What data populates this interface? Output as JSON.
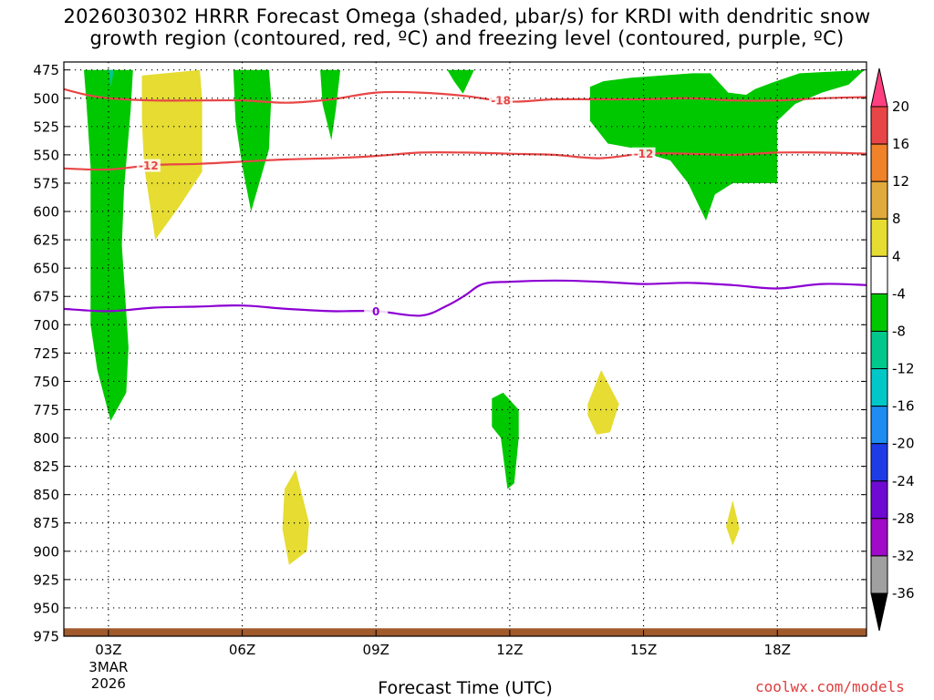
{
  "chart_data": {
    "type": "heatmap",
    "title_line1": "2026030302 HRRR Forecast Omega (shaded, μbar/s) for KRDI with dendritic snow",
    "title_line2": "growth region (contoured, red, ºC) and freezing level (contoured, purple, ºC)",
    "xlabel": "Forecast Time (UTC)",
    "credit": "coolwx.com/models",
    "x_axis": {
      "range_hours": [
        2,
        20
      ],
      "ticks": [
        {
          "hour": 3,
          "label": "03Z",
          "sub1": "3MAR",
          "sub2": "2026"
        },
        {
          "hour": 6,
          "label": "06Z"
        },
        {
          "hour": 9,
          "label": "09Z"
        },
        {
          "hour": 12,
          "label": "12Z"
        },
        {
          "hour": 15,
          "label": "15Z"
        },
        {
          "hour": 18,
          "label": "18Z"
        }
      ]
    },
    "y_axis": {
      "range_mb": [
        475,
        975
      ],
      "ticks": [
        475,
        500,
        525,
        550,
        575,
        600,
        625,
        650,
        675,
        700,
        725,
        750,
        775,
        800,
        825,
        850,
        875,
        900,
        925,
        950,
        975
      ]
    },
    "colorbar": {
      "levels": [
        20,
        16,
        12,
        8,
        4,
        -4,
        -8,
        -12,
        -16,
        -20,
        -24,
        -28,
        -32,
        -36
      ],
      "colors": [
        "#ff3f7f",
        "#e84646",
        "#f0822a",
        "#e0aa3c",
        "#e6dc32",
        "#ffffff",
        "#00c800",
        "#00c88c",
        "#00c8c8",
        "#1e8cf0",
        "#1e3ce6",
        "#6e0ad2",
        "#a00ac8",
        "#a0a0a0",
        "#000000"
      ]
    },
    "contours": [
      {
        "name": "dgz-minus18",
        "label": "-18",
        "color": "#e84646",
        "points": [
          [
            2.0,
            492
          ],
          [
            2.5,
            497
          ],
          [
            3,
            500
          ],
          [
            4,
            502
          ],
          [
            5,
            502
          ],
          [
            6,
            502
          ],
          [
            7,
            504
          ],
          [
            8,
            501
          ],
          [
            9,
            495
          ],
          [
            10,
            495
          ],
          [
            11,
            498
          ],
          [
            12,
            503
          ],
          [
            13,
            501
          ],
          [
            14,
            501
          ],
          [
            15,
            501
          ],
          [
            16,
            500
          ],
          [
            17,
            502
          ],
          [
            18,
            502
          ],
          [
            19,
            500
          ],
          [
            20,
            499
          ]
        ]
      },
      {
        "name": "dgz-minus12",
        "label": "-12",
        "color": "#e84646",
        "points": [
          [
            2.0,
            562
          ],
          [
            3,
            563
          ],
          [
            4,
            559
          ],
          [
            5,
            558
          ],
          [
            6,
            556
          ],
          [
            7,
            554
          ],
          [
            8,
            553
          ],
          [
            9,
            551
          ],
          [
            10,
            548
          ],
          [
            11,
            548
          ],
          [
            12,
            549
          ],
          [
            13,
            550
          ],
          [
            14,
            553
          ],
          [
            15,
            549
          ],
          [
            16,
            549
          ],
          [
            17,
            550
          ],
          [
            18,
            548
          ],
          [
            19,
            548
          ],
          [
            20,
            549
          ]
        ]
      },
      {
        "name": "freezing-level",
        "label": "0",
        "color": "#8c00d2",
        "points": [
          [
            2.0,
            686
          ],
          [
            3,
            688
          ],
          [
            4,
            685
          ],
          [
            5,
            684
          ],
          [
            6,
            683
          ],
          [
            7,
            686
          ],
          [
            8,
            688
          ],
          [
            9,
            688
          ],
          [
            10,
            692
          ],
          [
            10.6,
            683
          ],
          [
            11,
            674
          ],
          [
            11.4,
            664
          ],
          [
            12,
            662
          ],
          [
            13,
            661
          ],
          [
            14,
            662
          ],
          [
            15,
            664
          ],
          [
            16,
            663
          ],
          [
            17,
            665
          ],
          [
            18,
            668
          ],
          [
            19,
            664
          ],
          [
            20,
            665
          ]
        ]
      }
    ],
    "omega_regions": [
      {
        "name": "upward-motion-0to3z",
        "value": -6,
        "points": [
          [
            2.45,
            475
          ],
          [
            3.55,
            475
          ],
          [
            3.5,
            510
          ],
          [
            3.35,
            580
          ],
          [
            3.3,
            630
          ],
          [
            3.45,
            720
          ],
          [
            3.4,
            760
          ],
          [
            3.05,
            785
          ],
          [
            2.75,
            740
          ],
          [
            2.6,
            700
          ],
          [
            2.6,
            620
          ],
          [
            2.6,
            560
          ],
          [
            2.5,
            500
          ]
        ]
      },
      {
        "name": "upward-motion-core-3z",
        "value": -9,
        "points": [
          [
            3.0,
            475
          ],
          [
            3.12,
            475
          ],
          [
            3.06,
            490
          ]
        ]
      },
      {
        "name": "downward-motion-4z",
        "value": 5,
        "points": [
          [
            3.75,
            480
          ],
          [
            5.05,
            475
          ],
          [
            5.1,
            500
          ],
          [
            5.1,
            565
          ],
          [
            4.6,
            595
          ],
          [
            4.05,
            625
          ],
          [
            3.8,
            560
          ],
          [
            3.75,
            520
          ]
        ]
      },
      {
        "name": "upward-motion-6z",
        "value": -6,
        "points": [
          [
            5.8,
            475
          ],
          [
            6.6,
            475
          ],
          [
            6.65,
            500
          ],
          [
            6.6,
            545
          ],
          [
            6.2,
            600
          ],
          [
            6.0,
            560
          ],
          [
            5.85,
            520
          ]
        ]
      },
      {
        "name": "upward-motion-8z",
        "value": -6,
        "points": [
          [
            7.75,
            475
          ],
          [
            8.2,
            475
          ],
          [
            8.1,
            510
          ],
          [
            8.0,
            537
          ],
          [
            7.8,
            505
          ]
        ]
      },
      {
        "name": "upward-motion-11z",
        "value": -6,
        "points": [
          [
            10.6,
            475
          ],
          [
            11.2,
            475
          ],
          [
            10.95,
            496
          ],
          [
            10.75,
            485
          ]
        ]
      },
      {
        "name": "upward-motion-12z",
        "value": -6,
        "points": [
          [
            11.6,
            765
          ],
          [
            11.85,
            760
          ],
          [
            12.2,
            775
          ],
          [
            12.2,
            800
          ],
          [
            12.1,
            840
          ],
          [
            11.95,
            845
          ],
          [
            11.8,
            800
          ],
          [
            11.6,
            790
          ]
        ]
      },
      {
        "name": "upward-motion-14to18z",
        "value": -6,
        "points": [
          [
            13.8,
            490
          ],
          [
            14.1,
            485
          ],
          [
            14.7,
            482
          ],
          [
            16.1,
            478
          ],
          [
            16.5,
            478
          ],
          [
            16.9,
            495
          ],
          [
            17.3,
            497
          ],
          [
            17.5,
            492
          ],
          [
            17.9,
            486
          ],
          [
            18.5,
            478
          ],
          [
            19.95,
            475
          ],
          [
            19.6,
            488
          ],
          [
            19.0,
            495
          ],
          [
            18.4,
            505
          ],
          [
            18.0,
            520
          ],
          [
            18.0,
            550
          ],
          [
            18.0,
            575
          ],
          [
            17.0,
            575
          ],
          [
            16.6,
            585
          ],
          [
            16.4,
            608
          ],
          [
            16.0,
            575
          ],
          [
            15.6,
            555
          ],
          [
            15.0,
            548
          ],
          [
            14.9,
            545
          ],
          [
            14.2,
            540
          ],
          [
            13.8,
            520
          ]
        ]
      },
      {
        "name": "downward-motion-7z",
        "value": 5,
        "points": [
          [
            6.95,
            845
          ],
          [
            7.2,
            828
          ],
          [
            7.5,
            875
          ],
          [
            7.45,
            900
          ],
          [
            7.05,
            912
          ],
          [
            6.9,
            880
          ]
        ]
      },
      {
        "name": "downward-motion-14z",
        "value": 5,
        "points": [
          [
            13.75,
            770
          ],
          [
            14.05,
            740
          ],
          [
            14.45,
            770
          ],
          [
            14.25,
            795
          ],
          [
            13.95,
            797
          ],
          [
            13.75,
            780
          ]
        ]
      },
      {
        "name": "downward-motion-17z",
        "value": 5,
        "points": [
          [
            16.85,
            878
          ],
          [
            17.0,
            855
          ],
          [
            17.15,
            880
          ],
          [
            17.0,
            895
          ]
        ]
      }
    ],
    "terrain": {
      "name": "ground",
      "color": "#a05a2c",
      "top_mb": 968
    }
  }
}
